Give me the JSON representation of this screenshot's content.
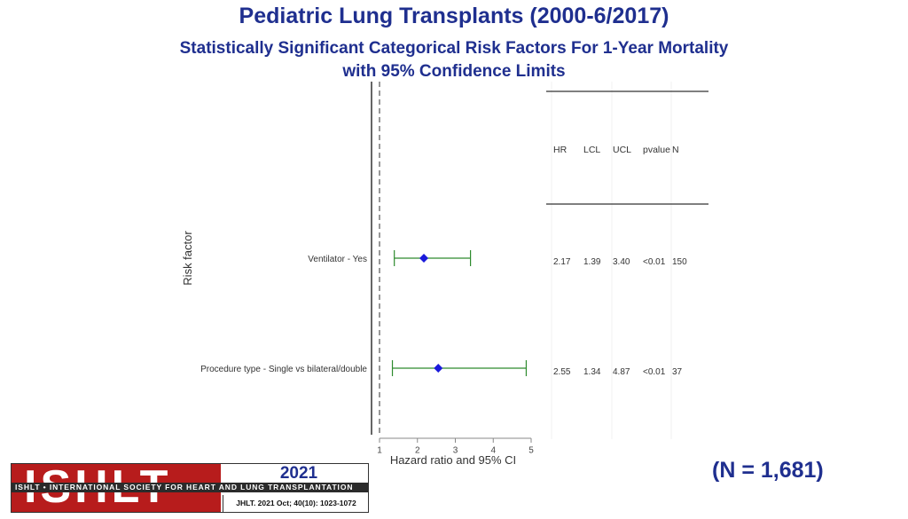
{
  "header": {
    "title": "Pediatric Lung Transplants (2000-6/2017)",
    "subtitle_line1": "Statistically Significant Categorical Risk Factors For 1-Year Mortality",
    "subtitle_line2": "with 95% Confidence Limits"
  },
  "chart_data": {
    "type": "forest",
    "ylabel": "Risk factor",
    "xlabel": "Hazard ratio and 95% CI",
    "xlim": [
      1,
      5
    ],
    "x_ticks": [
      "1",
      "2",
      "3",
      "4",
      "5"
    ],
    "reference_line": 1,
    "table_headers": [
      "HR",
      "LCL",
      "UCL",
      "pvalue",
      "N"
    ],
    "rows": [
      {
        "label": "Ventilator - Yes",
        "hr": 2.17,
        "lcl": 1.39,
        "ucl": 3.4,
        "cells": [
          "2.17",
          "1.39",
          "3.40",
          "<0.01",
          "150"
        ]
      },
      {
        "label": "Procedure type - Single vs bilateral/double",
        "hr": 2.55,
        "lcl": 1.34,
        "ucl": 4.87,
        "cells": [
          "2.55",
          "1.34",
          "4.87",
          "<0.01",
          "37"
        ]
      }
    ],
    "colors": {
      "point": "#1a1adb",
      "ci": "#2e8b2e",
      "axis": "#333333",
      "reference": "#555555"
    }
  },
  "footer": {
    "n_label": "(N = 1,681)",
    "logo_word": "ISHLT",
    "logo_band": "ISHLT • INTERNATIONAL SOCIETY FOR HEART AND LUNG TRANSPLANTATION",
    "year": "2021",
    "citation": "JHLT. 2021 Oct; 40(10): 1023-1072"
  }
}
